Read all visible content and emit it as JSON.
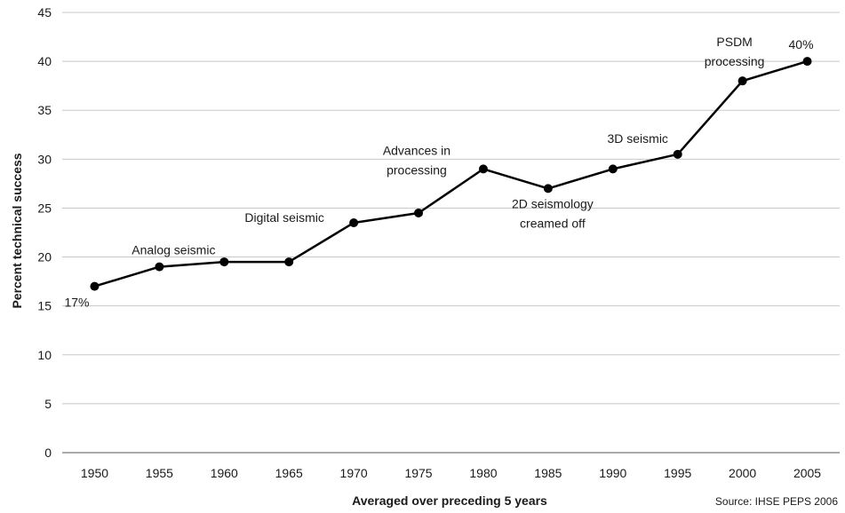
{
  "chart_data": {
    "type": "line",
    "title": "",
    "xlabel": "Averaged over preceding 5 years",
    "ylabel": "Percent technical success",
    "x": [
      1950,
      1955,
      1960,
      1965,
      1970,
      1975,
      1980,
      1985,
      1990,
      1995,
      2000,
      2005
    ],
    "series": [
      {
        "values": [
          17,
          19,
          19.5,
          19.5,
          23.5,
          24.5,
          29,
          27,
          29,
          30.5,
          38,
          40
        ],
        "color": "#000000"
      }
    ],
    "ylim": [
      0,
      45
    ],
    "yticks": [
      0,
      5,
      10,
      15,
      20,
      25,
      30,
      35,
      40,
      45
    ],
    "xtick_labels": [
      "1950",
      "1955",
      "1960",
      "1965",
      "1970",
      "1975",
      "1980",
      "1985",
      "1990",
      "1995",
      "2000",
      "2005"
    ],
    "grid": "horizontal",
    "annotations": [
      {
        "lines": [
          "17%"
        ],
        "x": 1950,
        "y": 17
      },
      {
        "lines": [
          "Analog seismic"
        ],
        "x": 1955,
        "y": 19
      },
      {
        "lines": [
          "Digital seismic"
        ],
        "x": 1970,
        "y": 23.5
      },
      {
        "lines": [
          "Advances in",
          "processing"
        ],
        "x": 1980,
        "y": 29
      },
      {
        "lines": [
          "2D seismology",
          "creamed off"
        ],
        "x": 1985,
        "y": 27
      },
      {
        "lines": [
          "3D seismic"
        ],
        "x": 1995,
        "y": 30.5
      },
      {
        "lines": [
          "PSDM",
          "processing"
        ],
        "x": 2000,
        "y": 38
      },
      {
        "lines": [
          "40%"
        ],
        "x": 2005,
        "y": 40
      }
    ],
    "source": "Source: IHSE PEPS 2006"
  }
}
